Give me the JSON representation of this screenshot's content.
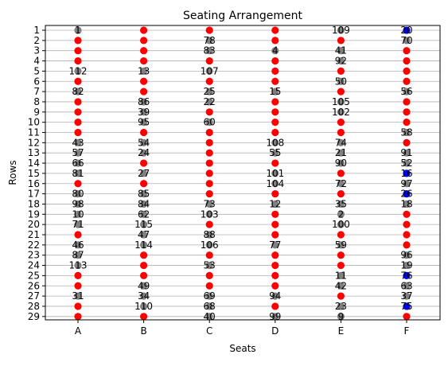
{
  "chart_data": {
    "type": "scatter",
    "title": "Seating Arrangement",
    "xlabel": "Seats",
    "ylabel": "Rows",
    "columns": [
      "A",
      "B",
      "C",
      "D",
      "E",
      "F"
    ],
    "rows": [
      1,
      2,
      3,
      4,
      5,
      6,
      7,
      8,
      9,
      10,
      11,
      12,
      13,
      14,
      15,
      16,
      17,
      18,
      19,
      20,
      21,
      22,
      23,
      24,
      25,
      26,
      27,
      28,
      29
    ],
    "grid": "horizontal",
    "colors": {
      "empty": "#ff0000",
      "occupied": "#808080",
      "accent": "#0000ff",
      "text": "#000000",
      "grid": "#b0b0b0"
    },
    "seats": {
      "A": [
        "1",
        "",
        "",
        "",
        "112",
        "",
        "82",
        "",
        "",
        "",
        "",
        "43",
        "57",
        "66",
        "81",
        "",
        "80",
        "98",
        "10",
        "71",
        "",
        "46",
        "87",
        "113",
        "",
        "",
        "31",
        "",
        ""
      ],
      "B": [
        "",
        "",
        "",
        "",
        "13",
        "",
        "",
        "86",
        "39",
        "95",
        "",
        "54",
        "24",
        "",
        "27",
        "",
        "85",
        "84",
        "62",
        "115",
        "47",
        "114",
        "",
        "",
        "",
        "49",
        "34",
        "110",
        ""
      ],
      "C": [
        "",
        "78",
        "83",
        "",
        "107",
        "",
        "25",
        "22",
        "",
        "60",
        "",
        "",
        "",
        "",
        "",
        "",
        "",
        "73",
        "103",
        "",
        "88",
        "106",
        "",
        "53",
        "",
        "",
        "69",
        "68",
        "40"
      ],
      "D": [
        "",
        "",
        "4",
        "",
        "",
        "",
        "15",
        "",
        "",
        "",
        "",
        "108",
        "55",
        "",
        "101",
        "104",
        "",
        "12",
        "",
        "",
        "",
        "77",
        "",
        "",
        "",
        "",
        "94",
        "",
        "99"
      ],
      "E": [
        "109",
        "",
        "41",
        "92",
        "",
        "50",
        "",
        "105",
        "102",
        "",
        "",
        "74",
        "21",
        "90",
        "",
        "72",
        "",
        "35",
        "2",
        "100",
        "",
        "59",
        "",
        "",
        "11",
        "42",
        "",
        "23",
        "9"
      ],
      "F": [
        "20",
        "70",
        "",
        "",
        "",
        "",
        "56",
        "",
        "",
        "",
        "58",
        "",
        "91",
        "52",
        "16",
        "97",
        "26",
        "18",
        "",
        "",
        "",
        "",
        "96",
        "19",
        "76",
        "63",
        "37",
        "75",
        ""
      ]
    },
    "accent_seats": [
      "F1",
      "F15",
      "F17",
      "F25",
      "F28"
    ]
  }
}
